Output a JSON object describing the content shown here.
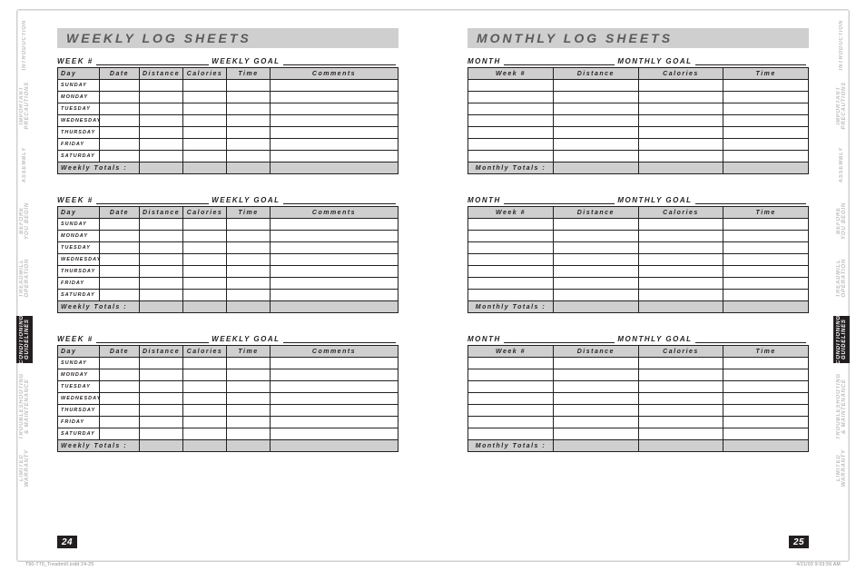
{
  "colors": {
    "panel": "#cfcfcf",
    "ink": "#231f20",
    "mute": "#bdbdbd",
    "white": "#ffffff"
  },
  "left": {
    "title": "Weekly Log Sheets",
    "header_labels": {
      "week": "Week #",
      "goal": "Weekly Goal"
    },
    "columns": {
      "day": "Day",
      "date": "Date",
      "distance": "Distance",
      "calories": "Calories",
      "time": "Time",
      "comments": "Comments"
    },
    "days": [
      "Sunday",
      "Monday",
      "Tuesday",
      "Wednesday",
      "Thursday",
      "Friday",
      "Saturday"
    ],
    "totals_label": "Weekly Totals :",
    "page_number": "24"
  },
  "right": {
    "title": "Monthly Log Sheets",
    "header_labels": {
      "month": "Month",
      "goal": "Monthly Goal"
    },
    "columns": {
      "week": "Week #",
      "distance": "Distance",
      "calories": "Calories",
      "time": "Time"
    },
    "blank_rows": 7,
    "totals_label": "Monthly Totals :",
    "page_number": "25"
  },
  "tabs": [
    {
      "label": "Introduction",
      "active": false
    },
    {
      "label": "Important\nPrecautions",
      "active": false
    },
    {
      "label": "Assembly",
      "active": false
    },
    {
      "label": "Before\nYou Begin",
      "active": false
    },
    {
      "label": "Treadmill\nOperation",
      "active": false
    },
    {
      "label": "Conditioning\nGuidelines",
      "active": true
    },
    {
      "label": "Troubleshooting\n& Maintenance",
      "active": false
    },
    {
      "label": "Limited\nWarranty",
      "active": false
    }
  ],
  "tab_heights": [
    44,
    52,
    44,
    42,
    48,
    52,
    58,
    44
  ],
  "slugline": {
    "file": "T50-T70_Treadmill.indd   24-25",
    "stamp": "4/21/03   9:03:56 AM"
  }
}
